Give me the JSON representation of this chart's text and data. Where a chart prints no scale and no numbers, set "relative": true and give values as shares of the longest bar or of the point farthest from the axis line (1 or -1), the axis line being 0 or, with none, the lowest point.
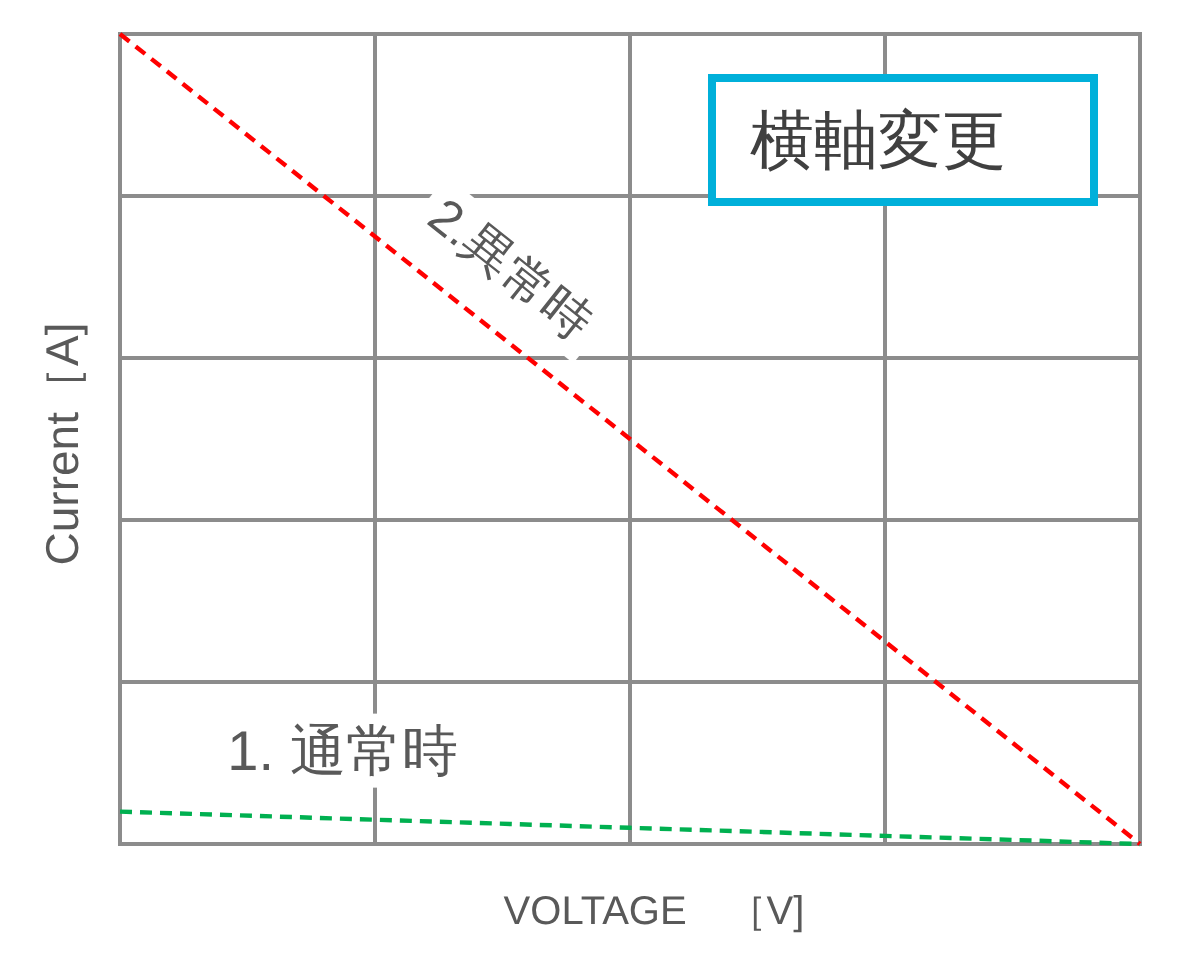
{
  "chart_data": {
    "type": "line",
    "xlabel": "VOLTAGE　［V]",
    "ylabel": "Current［A]",
    "categories": [
      null,
      null,
      null,
      null,
      null
    ],
    "relative": true,
    "line_style": "dashed",
    "grid": true,
    "series": [
      {
        "name": "1. 通常時",
        "color": "#00b050",
        "values": [
          0.04,
          0.03,
          0.02,
          0.01,
          0
        ]
      },
      {
        "name": "2.異常時",
        "color": "#ff0000",
        "values": [
          1,
          0.75,
          0.5,
          0.25,
          0
        ]
      }
    ],
    "annotations": [
      "横軸変更"
    ]
  }
}
